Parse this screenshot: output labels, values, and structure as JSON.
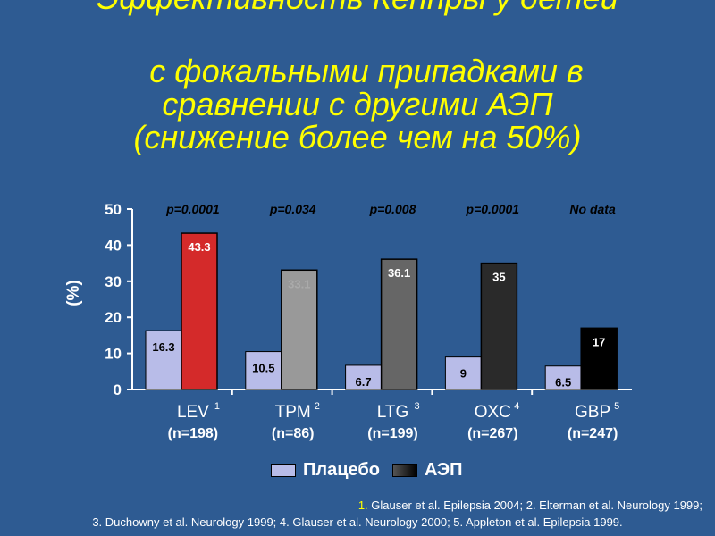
{
  "title": {
    "line0": "Эффективность Кеппры у детей",
    "line1": "с фокальными припадками в",
    "line2": "сравнении с другими АЭП",
    "line3": "(снижение более чем на 50%)"
  },
  "colors": {
    "background": "#2e5b92",
    "title": "#ffff00",
    "placebo": "#b8bce8",
    "aed": [
      "#d42a2a",
      "#999999",
      "#666666",
      "#2a2a2a",
      "#000000"
    ]
  },
  "chart_data": {
    "type": "bar",
    "ylabel": "(%)",
    "ylim": [
      0,
      50
    ],
    "yticks": [
      "0",
      "10",
      "20",
      "30",
      "40",
      "50"
    ],
    "categories": [
      "LEV",
      "TPM",
      "LTG",
      "OXC",
      "GBP"
    ],
    "superscripts": [
      "1",
      "2",
      "3",
      "4",
      "5"
    ],
    "n_labels": [
      "(n=198)",
      "(n=86)",
      "(n=199)",
      "(n=267)",
      "(n=247)"
    ],
    "p_values": [
      "p=0.0001",
      "p=0.034",
      "p=0.008",
      "p=0.0001",
      "No data"
    ],
    "series": [
      {
        "name": "Плацебо",
        "values": [
          16.3,
          10.5,
          6.7,
          9,
          6.5
        ],
        "labels": [
          "16.3",
          "10.5",
          "6.7",
          "9",
          "6.5"
        ]
      },
      {
        "name": "АЭП",
        "values": [
          43.3,
          33.1,
          36.1,
          35,
          17
        ],
        "labels": [
          "43.3",
          "33.1",
          "36.1",
          "35",
          "17"
        ]
      }
    ],
    "legend_position": "bottom"
  },
  "legend": {
    "placebo": "Плацебо",
    "aed": "АЭП"
  },
  "references": {
    "r1_num": "1.",
    "r1_text": " Glauser et al. Epilepsia 2004; 2. Elterman et al. Neurology 1999;",
    "r2_text": "3. Duchowny et al. Neurology 1999; 4. Glauser et al. Neurology 2000; 5. Appleton et al. Epilepsia 1999."
  }
}
